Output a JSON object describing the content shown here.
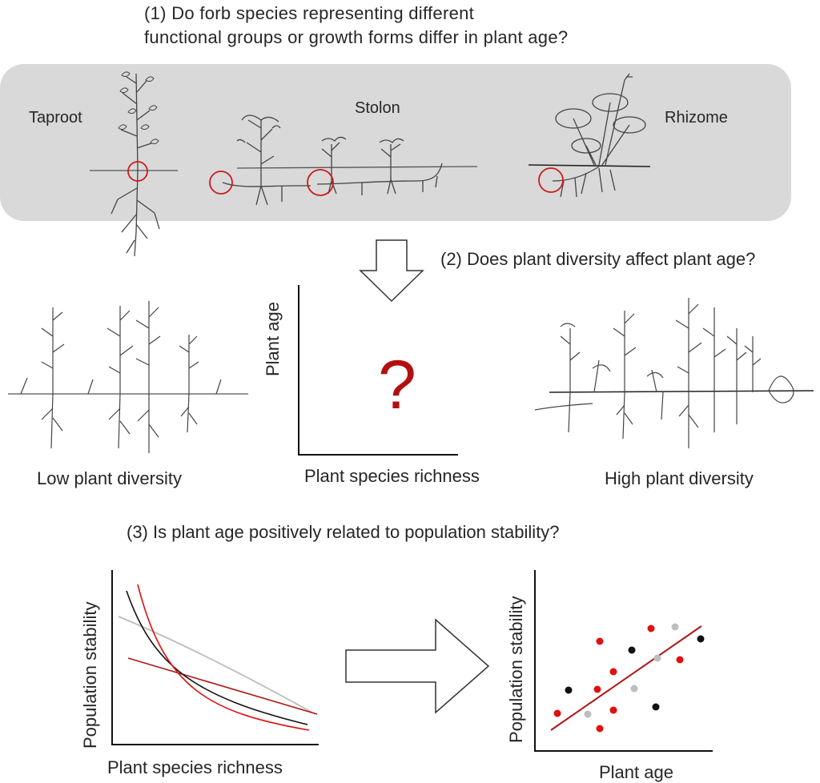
{
  "questions": {
    "q1_line1": "(1)   Do forb species representing different",
    "q1_line2": "functional groups or growth forms differ in plant age?",
    "q2": "(2) Does plant diversity affect plant age?",
    "q3": "(3) Is plant age positively related to population stability?"
  },
  "growth_forms": {
    "taproot": "Taproot",
    "stolon": "Stolon",
    "rhizome": "Rhizome"
  },
  "diversity": {
    "low": "Low plant diversity",
    "high": "High plant diversity"
  },
  "middle_plot": {
    "xlabel": "Plant species richness",
    "ylabel": "Plant age",
    "question_mark": "?"
  },
  "chart_left": {
    "xlabel": "Plant species richness",
    "ylabel": "Population stability"
  },
  "chart_right": {
    "xlabel": "Plant age",
    "ylabel": "Population stability"
  },
  "colors": {
    "panel": "#d9d9d9",
    "red": "#e01010",
    "dark_red": "#b01515",
    "black": "#111111",
    "grey": "#bdbdbd"
  }
}
